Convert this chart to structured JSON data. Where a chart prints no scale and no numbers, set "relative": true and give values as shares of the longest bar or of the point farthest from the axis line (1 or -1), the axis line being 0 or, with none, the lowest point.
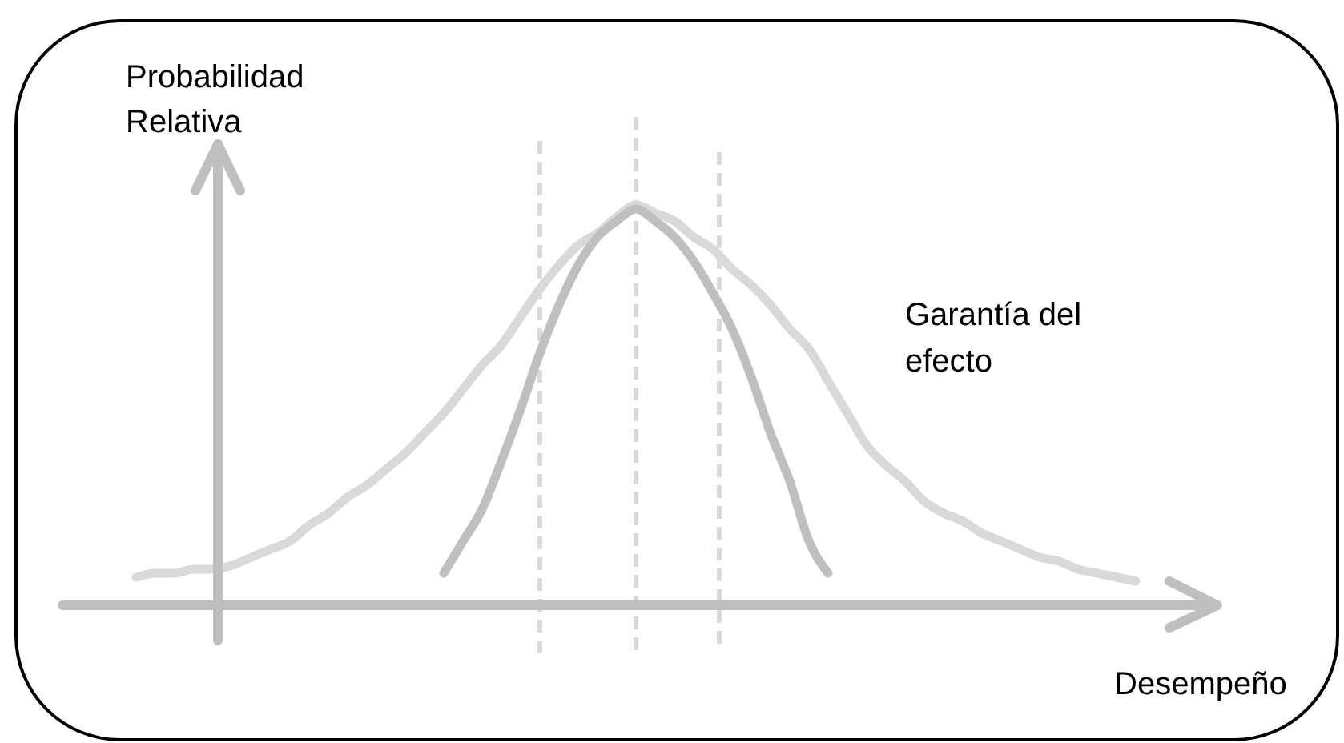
{
  "chart_data": {
    "type": "line",
    "relative": true,
    "categories": [
      null,
      null,
      null,
      null,
      null,
      null,
      null,
      null,
      null,
      null,
      null,
      null,
      null,
      null,
      null,
      null,
      null,
      null,
      null,
      null,
      null,
      null,
      null,
      null,
      null,
      null,
      null,
      null,
      null,
      null,
      null,
      null,
      null,
      null,
      null,
      null,
      null,
      null,
      null,
      null,
      null,
      null,
      null,
      null,
      null,
      null,
      null,
      null,
      null,
      null,
      null,
      null,
      null
    ],
    "series": [
      {
        "color": "#d9d9d9",
        "values": [
          0.07,
          0.08,
          0.08,
          0.09,
          0.09,
          0.1,
          0.12,
          0.14,
          0.16,
          0.2,
          0.23,
          0.27,
          0.3,
          0.34,
          0.38,
          0.43,
          0.48,
          0.54,
          0.6,
          0.65,
          0.72,
          0.79,
          0.85,
          0.9,
          0.93,
          0.97,
          1,
          0.98,
          0.96,
          0.92,
          0.89,
          0.84,
          0.8,
          0.75,
          0.69,
          0.64,
          0.56,
          0.48,
          0.4,
          0.35,
          0.31,
          0.26,
          0.23,
          0.21,
          0.18,
          0.16,
          0.14,
          0.12,
          0.11,
          0.09,
          0.08,
          0.07,
          0.06
        ]
      },
      {
        "color": "#bfbfbf",
        "values": [
          null,
          null,
          null,
          null,
          null,
          null,
          null,
          null,
          null,
          null,
          null,
          null,
          null,
          null,
          null,
          null,
          0.08,
          0.16,
          0.24,
          0.36,
          0.49,
          0.63,
          0.75,
          0.85,
          0.92,
          0.96,
          0.99,
          0.96,
          0.92,
          0.86,
          0.78,
          0.69,
          0.57,
          0.43,
          0.31,
          0.16,
          0.08,
          null,
          null,
          null,
          null,
          null,
          null,
          null,
          null,
          null,
          null,
          null,
          null,
          null,
          null,
          null,
          null
        ]
      }
    ],
    "ylabel": "Probabilidad\nRelativa",
    "xlabel": "Desempeño",
    "annotations": [
      "Garantía del\nefecto"
    ]
  }
}
